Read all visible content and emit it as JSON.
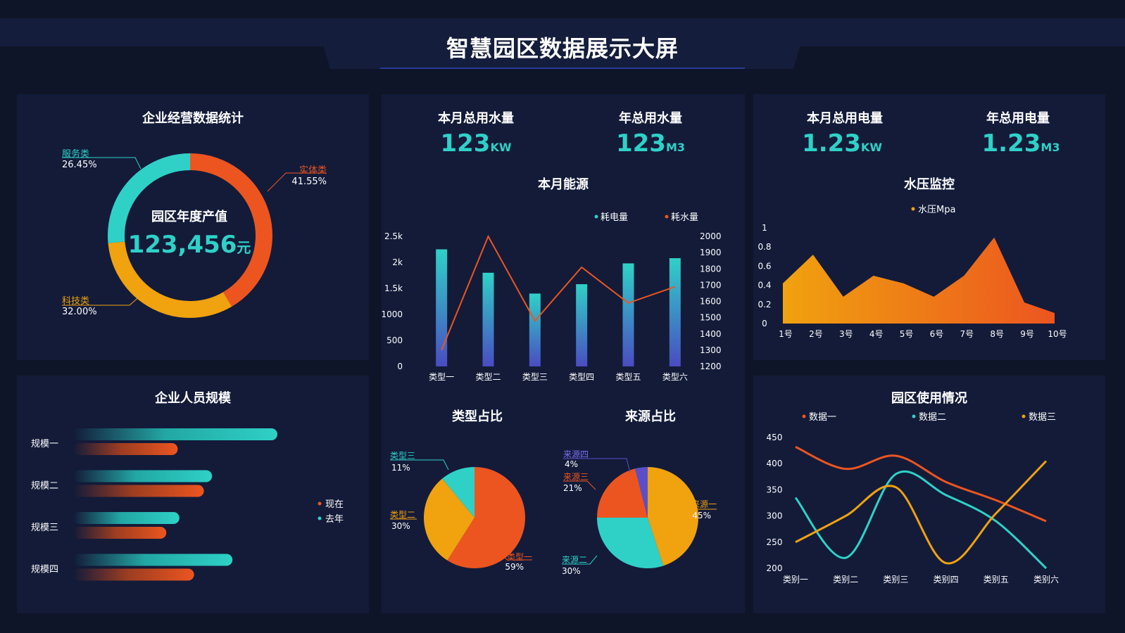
{
  "header": {
    "title": "智慧园区数据展示大屏"
  },
  "colors": {
    "teal": "#2fd1c7",
    "orange": "#ec5520",
    "yellow": "#f0a20f",
    "purple": "#5b4fc9",
    "bg": "#0f1528",
    "panel": "#131b39"
  },
  "business": {
    "title": "企业经营数据统计",
    "center_label": "园区年度产值",
    "center_value": "123,456",
    "center_unit": "元",
    "chart_data": {
      "type": "pie",
      "title": "企业经营数据统计",
      "slices": [
        {
          "name": "实体类",
          "value": 41.55,
          "pct": "41.55%",
          "color": "#ec5520"
        },
        {
          "name": "科技类",
          "value": 32.0,
          "pct": "32.00%",
          "color": "#f0a20f"
        },
        {
          "name": "服务类",
          "value": 26.45,
          "pct": "26.45%",
          "color": "#2fd1c7"
        }
      ]
    }
  },
  "water": {
    "month_label": "本月总用水量",
    "month_value": "123",
    "month_unit": "KW",
    "year_label": "年总用水量",
    "year_value": "123",
    "year_unit": "M3"
  },
  "power": {
    "month_label": "本月总用电量",
    "month_value": "1.23",
    "month_unit": "KW",
    "year_label": "年总用电量",
    "year_value": "1.23",
    "year_unit": "M3"
  },
  "energy": {
    "title": "本月能源",
    "chart_data": {
      "type": "bar",
      "title": "本月能源",
      "categories": [
        "类型一",
        "类型二",
        "类型三",
        "类型四",
        "类型五",
        "类型六"
      ],
      "series": [
        {
          "name": "耗电量",
          "type": "bar",
          "axis": "left",
          "values": [
            2250,
            1800,
            1400,
            1580,
            1980,
            2080
          ]
        },
        {
          "name": "耗水量",
          "type": "line",
          "axis": "right",
          "values": [
            1300,
            2000,
            1480,
            1810,
            1590,
            1690
          ]
        }
      ],
      "y_left": {
        "ticks": [
          "0",
          "500",
          "1000",
          "1.5k",
          "2k",
          "2.5k"
        ],
        "ylim": [
          0,
          2500
        ]
      },
      "y_right": {
        "ticks": [
          "1200",
          "1300",
          "1400",
          "1500",
          "1600",
          "1700",
          "1800",
          "1900",
          "2000"
        ],
        "ylim": [
          1200,
          2000
        ]
      }
    }
  },
  "pressure": {
    "title": "水压监控",
    "chart_data": {
      "type": "area",
      "title": "水压监控",
      "categories": [
        "1号",
        "2号",
        "3号",
        "4号",
        "5号",
        "6号",
        "7号",
        "8号",
        "9号",
        "10号"
      ],
      "series": [
        {
          "name": "水压Mpa",
          "values": [
            0.42,
            0.72,
            0.28,
            0.5,
            0.42,
            0.28,
            0.5,
            0.9,
            0.22,
            0.11
          ]
        }
      ],
      "yticks": [
        "0",
        "0.2",
        "0.4",
        "0.6",
        "0.8",
        "1"
      ],
      "ylim": [
        0,
        1
      ]
    }
  },
  "staff": {
    "title": "企业人员规模",
    "chart_data": {
      "type": "bar",
      "orientation": "horizontal",
      "title": "企业人员规模",
      "categories": [
        "规模一",
        "规模二",
        "规模三",
        "规模四"
      ],
      "series": [
        {
          "name": "去年",
          "values": [
            100,
            68,
            52,
            78
          ]
        },
        {
          "name": "现在",
          "values": [
            64,
            80,
            57,
            74
          ]
        }
      ]
    }
  },
  "type_share": {
    "title": "类型占比",
    "chart_data": {
      "type": "pie",
      "title": "类型占比",
      "slices": [
        {
          "name": "类型一",
          "value": 59,
          "pct": "59%",
          "color": "#ec5520"
        },
        {
          "name": "类型二",
          "value": 30,
          "pct": "30%",
          "color": "#f0a20f"
        },
        {
          "name": "类型三",
          "value": 11,
          "pct": "11%",
          "color": "#2fd1c7"
        }
      ]
    }
  },
  "source_share": {
    "title": "来源占比",
    "chart_data": {
      "type": "pie",
      "title": "来源占比",
      "slices": [
        {
          "name": "来源一",
          "value": 45,
          "pct": "45%",
          "color": "#f0a20f"
        },
        {
          "name": "来源二",
          "value": 30,
          "pct": "30%",
          "color": "#2fd1c7"
        },
        {
          "name": "来源三",
          "value": 21,
          "pct": "21%",
          "color": "#ec5520"
        },
        {
          "name": "来源四",
          "value": 4,
          "pct": "4%",
          "color": "#5b4fc9"
        }
      ]
    }
  },
  "usage": {
    "title": "园区使用情况",
    "chart_data": {
      "type": "line",
      "title": "园区使用情况",
      "categories": [
        "类别一",
        "类别二",
        "类别三",
        "类别四",
        "类别五",
        "类别六"
      ],
      "series": [
        {
          "name": "数据一",
          "color": "#ec5520",
          "values": [
            432,
            390,
            415,
            365,
            330,
            290
          ]
        },
        {
          "name": "数据二",
          "color": "#2fd1c7",
          "values": [
            335,
            220,
            380,
            340,
            290,
            200
          ]
        },
        {
          "name": "数据三",
          "color": "#f0a20f",
          "values": [
            250,
            300,
            355,
            210,
            305,
            405
          ]
        }
      ],
      "yticks": [
        "200",
        "250",
        "300",
        "350",
        "400",
        "450"
      ],
      "ylim": [
        200,
        450
      ]
    }
  }
}
